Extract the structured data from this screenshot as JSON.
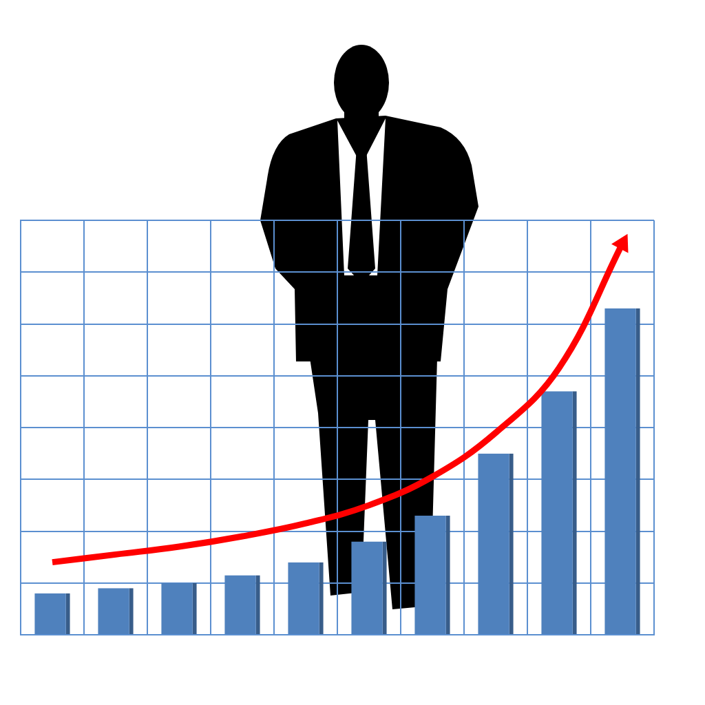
{
  "chart_data": {
    "type": "bar",
    "categories": [
      null,
      null,
      null,
      null,
      null,
      null,
      null,
      null,
      null,
      null
    ],
    "series": [
      {
        "type": "bar",
        "color": "#4f81bd",
        "values": [
          0.8,
          0.9,
          1.0,
          1.15,
          1.4,
          1.8,
          2.3,
          3.5,
          4.7,
          6.3
        ]
      },
      {
        "type": "line",
        "color": "#ff0000",
        "values": [
          1.4,
          1.55,
          1.7,
          1.9,
          2.15,
          2.5,
          3.05,
          3.9,
          5.15,
          7.55
        ]
      }
    ],
    "ylim": [
      0,
      8
    ],
    "yticks": [
      0,
      1,
      2,
      3,
      4,
      5,
      6,
      7,
      8
    ],
    "grid": true,
    "tick_labels": false
  }
}
